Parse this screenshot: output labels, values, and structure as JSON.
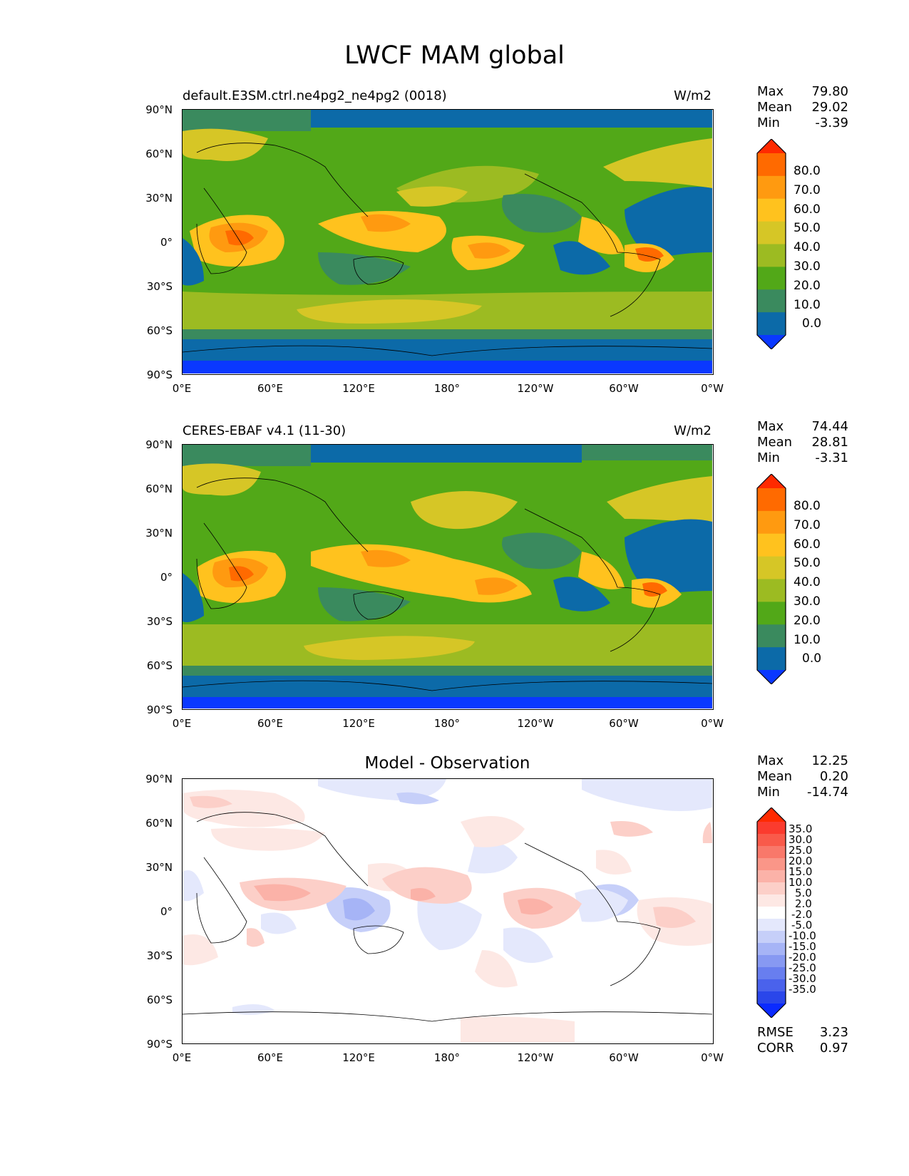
{
  "title": "LWCF MAM global",
  "panels": [
    {
      "title": "default.E3SM.ctrl.ne4pg2_ne4pg2 (0018)",
      "units": "W/m2",
      "stats": [
        {
          "label": "Max",
          "value": "79.80"
        },
        {
          "label": "Mean",
          "value": "29.02"
        },
        {
          "label": "Min",
          "value": "-3.39"
        }
      ],
      "colorbar": {
        "labels": [
          "80.0",
          "70.0",
          "60.0",
          "50.0",
          "40.0",
          "30.0",
          "20.0",
          "10.0",
          "0.0"
        ],
        "colors": [
          "#ff2a00",
          "#ff6a00",
          "#ff9a10",
          "#ffc21e",
          "#d6c626",
          "#9cbb22",
          "#52a818",
          "#3a8a5e",
          "#0c6aa8",
          "#0a38ff"
        ]
      }
    },
    {
      "title": "CERES-EBAF v4.1 (11-30)",
      "units": "W/m2",
      "stats": [
        {
          "label": "Max",
          "value": "74.44"
        },
        {
          "label": "Mean",
          "value": "28.81"
        },
        {
          "label": "Min",
          "value": "-3.31"
        }
      ],
      "colorbar": {
        "labels": [
          "80.0",
          "70.0",
          "60.0",
          "50.0",
          "40.0",
          "30.0",
          "20.0",
          "10.0",
          "0.0"
        ],
        "colors": [
          "#ff2a00",
          "#ff6a00",
          "#ff9a10",
          "#ffc21e",
          "#d6c626",
          "#9cbb22",
          "#52a818",
          "#3a8a5e",
          "#0c6aa8",
          "#0a38ff"
        ]
      }
    },
    {
      "title": "Model - Observation",
      "units": "",
      "stats": [
        {
          "label": "Max",
          "value": "12.25"
        },
        {
          "label": "Mean",
          "value": "0.20"
        },
        {
          "label": "Min",
          "value": "-14.74"
        }
      ],
      "colorbar": {
        "labels": [
          "35.0",
          "30.0",
          "25.0",
          "20.0",
          "15.0",
          "10.0",
          "5.0",
          "2.0",
          "-2.0",
          "-5.0",
          "-10.0",
          "-15.0",
          "-20.0",
          "-25.0",
          "-30.0",
          "-35.0"
        ],
        "colors": [
          "#ff2a00",
          "#fb3b2e",
          "#f95a4a",
          "#f9786a",
          "#fa9688",
          "#fbb2a8",
          "#fccfc8",
          "#fde8e4",
          "#ffffff",
          "#e4e8fc",
          "#c6cff9",
          "#a6b4f6",
          "#8799f2",
          "#687eef",
          "#4a62ec",
          "#2a46ea",
          "#0a2aff"
        ]
      },
      "error_stats": [
        {
          "label": "RMSE",
          "value": "3.23"
        },
        {
          "label": "CORR",
          "value": "0.97"
        }
      ]
    }
  ],
  "axes": {
    "y_ticks": [
      "90°N",
      "60°N",
      "30°N",
      "0°",
      "30°S",
      "60°S",
      "90°S"
    ],
    "x_ticks": [
      "0°E",
      "60°E",
      "120°E",
      "180°",
      "120°W",
      "60°W",
      "0°W"
    ]
  }
}
